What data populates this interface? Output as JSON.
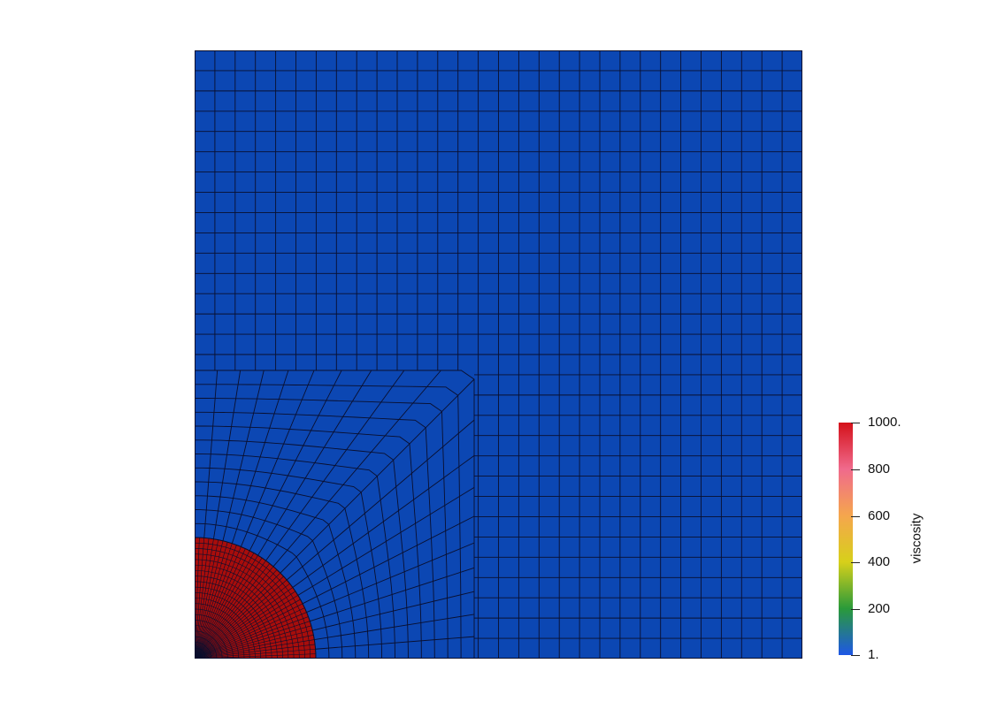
{
  "scene": {
    "field_name": "viscosity",
    "colors": {
      "background": "#ffffff",
      "matrix": "#0c47b3",
      "inclusion": "#a80d0b",
      "mesh_lines": "#0a0f2e"
    }
  },
  "colorbar": {
    "title": "viscosity",
    "range": [
      1,
      1000
    ],
    "ticks": [
      {
        "value": 1000,
        "label": "1000."
      },
      {
        "value": 800,
        "label": "800"
      },
      {
        "value": 600,
        "label": "600"
      },
      {
        "value": 400,
        "label": "400"
      },
      {
        "value": 200,
        "label": "200"
      },
      {
        "value": 1,
        "label": "1."
      }
    ],
    "gradient": [
      "#1e57e6",
      "#2a9a3a",
      "#d7d01a",
      "#f5a64d",
      "#f06a8c",
      "#d4111a"
    ]
  }
}
